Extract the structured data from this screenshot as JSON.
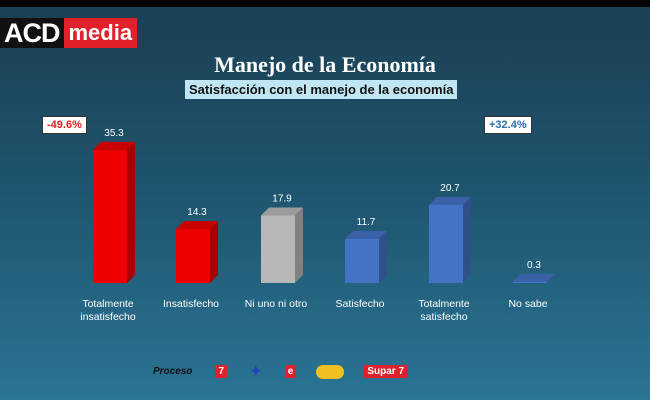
{
  "logo": {
    "left": "ACD",
    "right": "media"
  },
  "chart_data": {
    "type": "bar",
    "title": "Manejo de la Economía",
    "subtitle": "Satisfacción con el manejo de la economía",
    "categories": [
      [
        "Totalmente",
        "insatisfecho"
      ],
      [
        "Insatisfecho"
      ],
      [
        "Ni uno ni otro"
      ],
      [
        "Satisfecho"
      ],
      [
        "Totalmente",
        "satisfecho"
      ],
      [
        "No sabe"
      ]
    ],
    "values": [
      35.3,
      14.3,
      17.9,
      11.7,
      20.7,
      0.3
    ],
    "value_labels": [
      "35.3",
      "14.3",
      "17.9",
      "11.7",
      "20.7",
      "0.3"
    ],
    "colors": [
      "#ee0000",
      "#ee0000",
      "#b8b8b8",
      "#4472c4",
      "#4472c4",
      "#4472c4"
    ],
    "annotations": {
      "negative": "-49.6%",
      "positive": "+32.4%"
    },
    "annotation_colors": {
      "negative": "#e02020",
      "positive": "#2a6db0"
    },
    "grid": false
  },
  "sponsors": [
    "Proceso",
    "7",
    "e",
    "Supar 7"
  ]
}
